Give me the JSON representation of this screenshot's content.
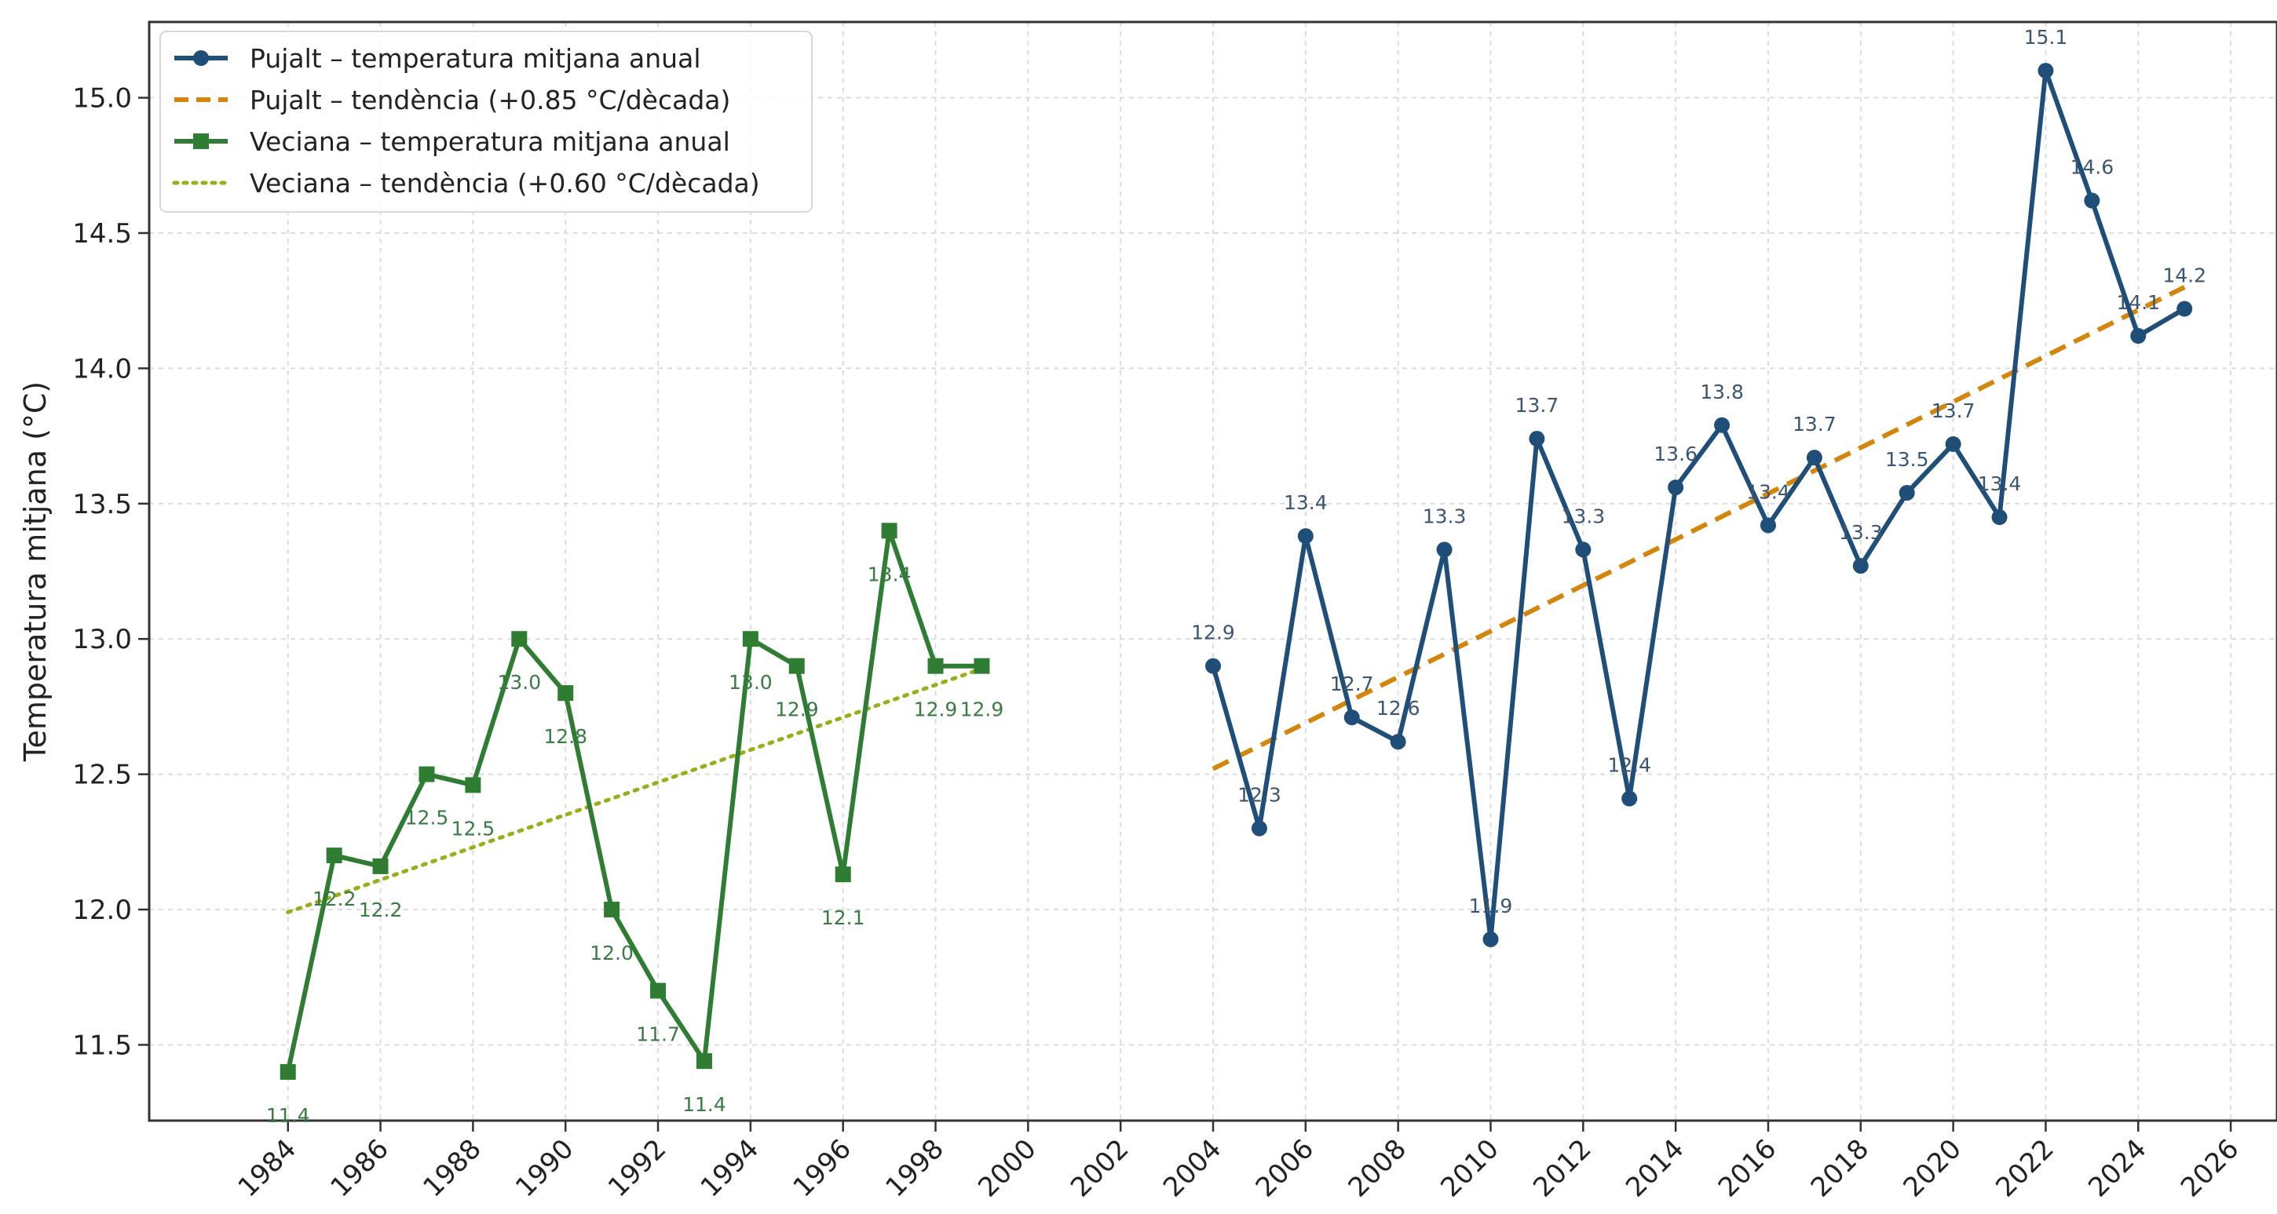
{
  "chart_data": {
    "type": "line",
    "title": "",
    "xlabel": "",
    "ylabel": "Temperatura mitjana (°C)",
    "xlim": [
      1981,
      2027
    ],
    "ylim": [
      11.22,
      15.28
    ],
    "x_ticks": [
      1984,
      1986,
      1988,
      1990,
      1992,
      1994,
      1996,
      1998,
      2000,
      2002,
      2004,
      2006,
      2008,
      2010,
      2012,
      2014,
      2016,
      2018,
      2020,
      2022,
      2024,
      2026
    ],
    "y_ticks": [
      "11.5",
      "12.0",
      "12.5",
      "13.0",
      "13.5",
      "14.0",
      "14.5",
      "15.0"
    ],
    "grid": true,
    "legend_position": "top-left",
    "series": [
      {
        "name": "Pujalt – temperatura mitjana anual",
        "style": "line-circle",
        "color": "#1f4e79",
        "x": [
          2004,
          2005,
          2006,
          2007,
          2008,
          2009,
          2010,
          2011,
          2012,
          2013,
          2014,
          2015,
          2016,
          2017,
          2018,
          2019,
          2020,
          2021,
          2022,
          2023,
          2024,
          2025
        ],
        "y": [
          12.9,
          12.3,
          13.38,
          12.71,
          12.62,
          13.33,
          11.89,
          13.74,
          13.33,
          12.41,
          13.56,
          13.79,
          13.42,
          13.67,
          13.27,
          13.54,
          13.72,
          13.45,
          15.1,
          14.62,
          14.12,
          14.22
        ],
        "labels": [
          "12.9",
          "12.3",
          "13.4",
          "12.7",
          "12.6",
          "13.3",
          "11.9",
          "13.7",
          "13.3",
          "12.4",
          "13.6",
          "13.8",
          "13.4",
          "13.7",
          "13.3",
          "13.5",
          "13.7",
          "13.4",
          "15.1",
          "14.6",
          "14.1",
          "14.2"
        ]
      },
      {
        "name": "Pujalt – tendència (+0.85 °C/dècada)",
        "style": "dashed",
        "color": "#d4860b",
        "x": [
          2004,
          2025
        ],
        "y": [
          12.52,
          14.3
        ]
      },
      {
        "name": "Veciana – temperatura mitjana anual",
        "style": "line-square",
        "color": "#2e7d32",
        "x": [
          1984,
          1985,
          1986,
          1987,
          1988,
          1989,
          1990,
          1991,
          1992,
          1993,
          1994,
          1995,
          1996,
          1997,
          1998,
          1999
        ],
        "y": [
          11.4,
          12.2,
          12.16,
          12.5,
          12.46,
          13.0,
          12.8,
          12.0,
          11.7,
          11.44,
          13.0,
          12.9,
          12.13,
          13.4,
          12.9,
          12.9
        ],
        "labels": [
          "11.4",
          "12.2",
          "12.2",
          "12.5",
          "12.5",
          "13.0",
          "12.8",
          "12.0",
          "11.7",
          "11.4",
          "13.0",
          "12.9",
          "12.1",
          "13.4",
          "12.9",
          "12.9"
        ]
      },
      {
        "name": "Veciana – tendència (+0.60 °C/dècada)",
        "style": "dotted",
        "color": "#9aae1a",
        "x": [
          1984,
          1999
        ],
        "y": [
          11.99,
          12.89
        ]
      }
    ]
  }
}
